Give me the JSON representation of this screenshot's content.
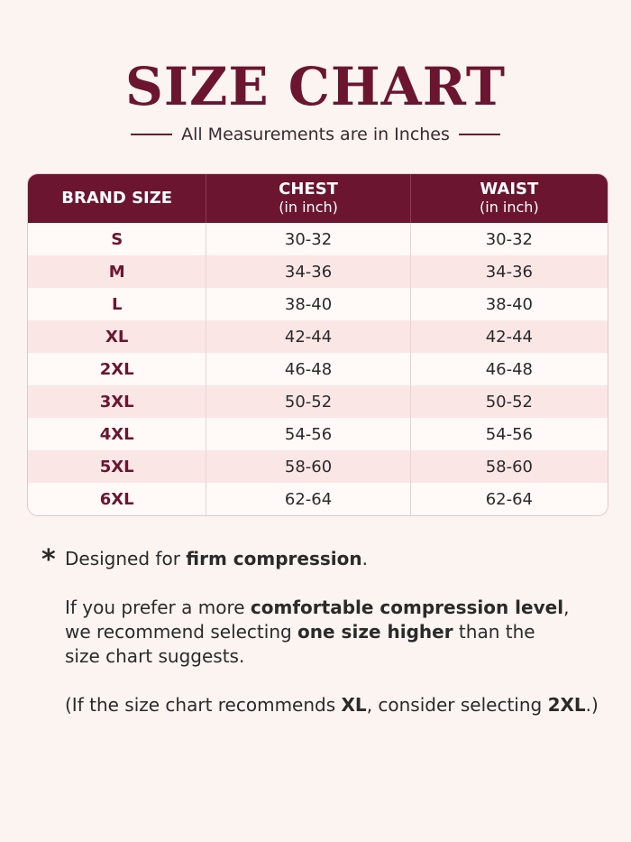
{
  "title": "SIZE CHART",
  "subtitle": "All Measurements are in Inches",
  "table": {
    "headers": [
      {
        "title": "BRAND SIZE"
      },
      {
        "title": "CHEST",
        "unit": "(in inch)"
      },
      {
        "title": "WAIST",
        "unit": "(in inch)"
      }
    ],
    "rows": [
      [
        "S",
        "30-32",
        "30-32"
      ],
      [
        "M",
        "34-36",
        "34-36"
      ],
      [
        "L",
        "38-40",
        "38-40"
      ],
      [
        "XL",
        "42-44",
        "42-44"
      ],
      [
        "2XL",
        "46-48",
        "46-48"
      ],
      [
        "3XL",
        "50-52",
        "50-52"
      ],
      [
        "4XL",
        "54-56",
        "54-56"
      ],
      [
        "5XL",
        "58-60",
        "58-60"
      ],
      [
        "6XL",
        "62-64",
        "62-64"
      ]
    ]
  },
  "notes": {
    "marker": "*",
    "paragraphs": [
      {
        "lines": [
          [
            {
              "text": "Designed for "
            },
            {
              "text": "firm compression",
              "bold": true
            },
            {
              "text": "."
            }
          ]
        ]
      },
      {
        "lines": [
          [
            {
              "text": "If you prefer a more "
            },
            {
              "text": "comfortable compression level",
              "bold": true
            },
            {
              "text": ","
            }
          ],
          [
            {
              "text": "we recommend selecting "
            },
            {
              "text": "one size higher",
              "bold": true
            },
            {
              "text": " than the"
            }
          ],
          [
            {
              "text": "size chart suggests."
            }
          ]
        ]
      },
      {
        "lines": [
          [
            {
              "text": "(If the size chart recommends "
            },
            {
              "text": "XL",
              "bold": true
            },
            {
              "text": ", consider selecting "
            },
            {
              "text": "2XL",
              "bold": true
            },
            {
              "text": ".)"
            }
          ]
        ]
      }
    ]
  }
}
